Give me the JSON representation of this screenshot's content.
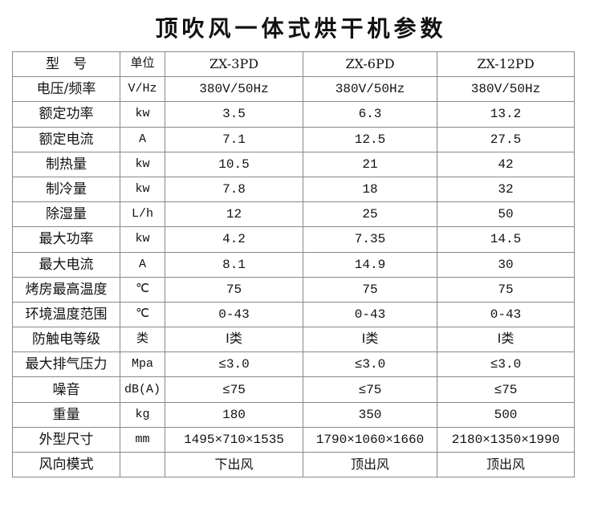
{
  "title": "顶吹风一体式烘干机参数",
  "table": {
    "header": [
      "型　号",
      "单位",
      "ZX-3PD",
      "ZX-6PD",
      "ZX-12PD"
    ],
    "rows": [
      [
        "电压/频率",
        "V/Hz",
        "380V/50Hz",
        "380V/50Hz",
        "380V/50Hz"
      ],
      [
        "额定功率",
        "kw",
        "3.5",
        "6.3",
        "13.2"
      ],
      [
        "额定电流",
        "A",
        "7.1",
        "12.5",
        "27.5"
      ],
      [
        "制热量",
        "kw",
        "10.5",
        "21",
        "42"
      ],
      [
        "制冷量",
        "kw",
        "7.8",
        "18",
        "32"
      ],
      [
        "除湿量",
        "L/h",
        "12",
        "25",
        "50"
      ],
      [
        "最大功率",
        "kw",
        "4.2",
        "7.35",
        "14.5"
      ],
      [
        "最大电流",
        "A",
        "8.1",
        "14.9",
        "30"
      ],
      [
        "烤房最高温度",
        "℃",
        "75",
        "75",
        "75"
      ],
      [
        "环境温度范围",
        "℃",
        "0-43",
        "0-43",
        "0-43"
      ],
      [
        "防触电等级",
        "类",
        "Ⅰ类",
        "Ⅰ类",
        "Ⅰ类"
      ],
      [
        "最大排气压力",
        "Mpa",
        "≤3.0",
        "≤3.0",
        "≤3.0"
      ],
      [
        "噪音",
        "dB(A)",
        "≤75",
        "≤75",
        "≤75"
      ],
      [
        "重量",
        "kg",
        "180",
        "350",
        "500"
      ],
      [
        "外型尺寸",
        "mm",
        "1495×710×1535",
        "1790×1060×1660",
        "2180×1350×1990"
      ],
      [
        "风向模式",
        "",
        "下出风",
        "顶出风",
        "顶出风"
      ]
    ]
  }
}
